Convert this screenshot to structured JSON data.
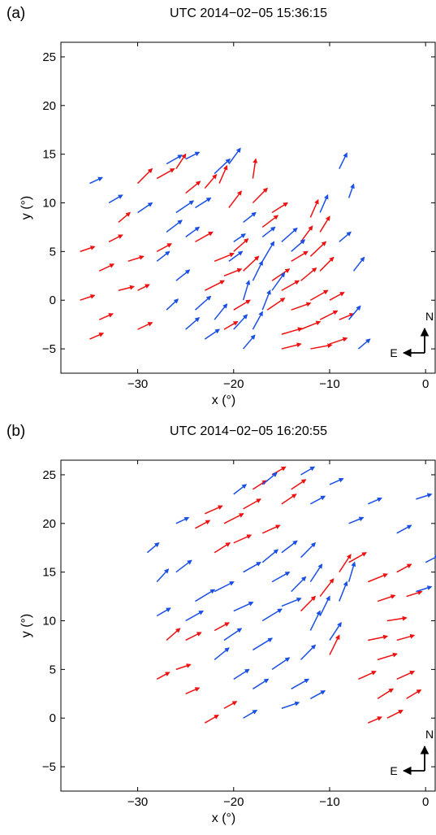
{
  "colors": {
    "red": "#ee1111",
    "blue": "#1a4fe6",
    "axis": "#000000"
  },
  "chart_data": [
    {
      "type": "scatter",
      "subtype": "vector-field",
      "panel_label": "(a)",
      "title": "UTC 2014−02−05 15:36:15",
      "xlabel": "x (°)",
      "ylabel": "y (°)",
      "xlim": [
        -38,
        1
      ],
      "ylim": [
        -7.5,
        26.5
      ],
      "xticks": [
        -30,
        -20,
        -10,
        0
      ],
      "xtick_labels": [
        "−30",
        "−20",
        "−10",
        "0"
      ],
      "yticks": [
        -5,
        0,
        5,
        10,
        15,
        20,
        25
      ],
      "ytick_labels": [
        "−5",
        "0",
        "5",
        "10",
        "15",
        "20",
        "25"
      ],
      "grid": false,
      "compass": {
        "north": "N",
        "east": "E"
      },
      "series": [
        {
          "color": "red",
          "values": [
            [
              -30,
              12,
              1.5,
              1.5
            ],
            [
              -28,
              12.5,
              1.8,
              1
            ],
            [
              -26,
              13.5,
              1,
              1.5
            ],
            [
              -25,
              11,
              1.5,
              1.2
            ],
            [
              -23,
              11.5,
              1.2,
              1.4
            ],
            [
              -21.5,
              12,
              0.8,
              1.8
            ],
            [
              -20.5,
              9.5,
              1.3,
              1.7
            ],
            [
              -18,
              12.5,
              0.3,
              2
            ],
            [
              -18,
              10,
              1.5,
              1.5
            ],
            [
              -17,
              7.5,
              1.6,
              1.2
            ],
            [
              -16,
              9,
              1.6,
              1
            ],
            [
              -36,
              5,
              1.5,
              0.5
            ],
            [
              -34,
              3,
              1.5,
              0.7
            ],
            [
              -33,
              6,
              1.4,
              0.7
            ],
            [
              -31,
              4,
              1.6,
              0.5
            ],
            [
              -32,
              8,
              1.2,
              1
            ],
            [
              -36,
              0,
              1.5,
              0.5
            ],
            [
              -34,
              -2,
              1.4,
              0.6
            ],
            [
              -32,
              1,
              1.6,
              0.4
            ],
            [
              -35,
              -4,
              1.4,
              0.6
            ],
            [
              -30,
              -3,
              1.5,
              0.7
            ],
            [
              -30,
              1,
              1.2,
              0.6
            ],
            [
              -28,
              5,
              1.5,
              0.8
            ],
            [
              -24,
              6,
              1.8,
              1
            ],
            [
              -22,
              4,
              2,
              0.8
            ],
            [
              -23,
              1,
              2,
              1
            ],
            [
              -21,
              2.5,
              1.8,
              0.7
            ],
            [
              -20,
              5,
              1.5,
              1.3
            ],
            [
              -20,
              -1,
              1.7,
              1
            ],
            [
              -19,
              3,
              1.6,
              1.5
            ],
            [
              -21,
              -3,
              1.4,
              0.8
            ],
            [
              -15,
              -3.5,
              2.1,
              0.6
            ],
            [
              -13,
              -3,
              2,
              0.8
            ],
            [
              -11,
              -2,
              1.8,
              0.9
            ],
            [
              -14,
              -1,
              2,
              0.7
            ],
            [
              -12,
              0,
              1.8,
              1
            ],
            [
              -10,
              0,
              1.5,
              0.8
            ],
            [
              -15,
              1,
              1.8,
              1
            ],
            [
              -13,
              2,
              1.6,
              1.3
            ],
            [
              -11,
              3,
              1.4,
              1.4
            ],
            [
              -12,
              4.5,
              1.6,
              1.5
            ],
            [
              -14,
              4,
              1.7,
              1
            ],
            [
              -15,
              -5,
              2,
              0.5
            ],
            [
              -12,
              -5,
              2.2,
              0.4
            ],
            [
              -10,
              -4.5,
              1.8,
              0.6
            ],
            [
              -9,
              -2,
              1.5,
              0.6
            ],
            [
              -13,
              6,
              1.2,
              1.6
            ],
            [
              -11,
              7,
              1,
              1.6
            ],
            [
              -12,
              8.5,
              0.8,
              1.8
            ],
            [
              -16,
              2,
              1.8,
              1.2
            ],
            [
              -16.5,
              -1,
              1.8,
              1.2
            ]
          ]
        },
        {
          "color": "blue",
          "values": [
            [
              -35,
              12,
              1.3,
              0.6
            ],
            [
              -33,
              10,
              1.4,
              0.8
            ],
            [
              -30,
              9,
              1.5,
              1
            ],
            [
              -27,
              14,
              1.6,
              0.9
            ],
            [
              -25,
              14.5,
              1.4,
              0.7
            ],
            [
              -22,
              13,
              1.6,
              1.5
            ],
            [
              -20.5,
              14,
              1.2,
              1.6
            ],
            [
              -26,
              9,
              1.8,
              1.2
            ],
            [
              -24,
              9.5,
              1.6,
              1
            ],
            [
              -27,
              7,
              1.6,
              1.2
            ],
            [
              -25,
              6.5,
              1.4,
              1
            ],
            [
              -28,
              4,
              1.3,
              1
            ],
            [
              -26,
              2,
              1.4,
              1.1
            ],
            [
              -27,
              -1,
              1.2,
              1.1
            ],
            [
              -25,
              -3,
              1.4,
              1.2
            ],
            [
              -23,
              -4,
              1.5,
              1
            ],
            [
              -24,
              -1,
              1.6,
              1.4
            ],
            [
              -22,
              -2,
              1.3,
              1.6
            ],
            [
              -19,
              0,
              0.6,
              2
            ],
            [
              -18,
              2,
              1,
              2
            ],
            [
              -17,
              -1,
              0.8,
              2
            ],
            [
              -18,
              -3,
              1,
              1.8
            ],
            [
              -16,
              1,
              1.3,
              1.8
            ],
            [
              -17,
              4,
              1.2,
              2
            ],
            [
              -15,
              6,
              1.6,
              1.4
            ],
            [
              -17,
              6.5,
              1.3,
              1
            ],
            [
              -14,
              5,
              1.4,
              1.2
            ],
            [
              -19,
              -5,
              1.2,
              1.4
            ],
            [
              -20,
              -3,
              1.4,
              1.5
            ],
            [
              -20,
              6,
              1.2,
              0.8
            ],
            [
              -19,
              8,
              1.3,
              1
            ],
            [
              -20.5,
              4,
              1.4,
              1
            ],
            [
              -11,
              9,
              0.8,
              1.8
            ],
            [
              -8,
              10.5,
              0.5,
              1.4
            ],
            [
              -9,
              13.5,
              0.8,
              1.6
            ],
            [
              -8,
              -2,
              1.2,
              1.4
            ],
            [
              -7.5,
              3,
              1.1,
              1.4
            ],
            [
              -7,
              -5,
              1.2,
              1
            ],
            [
              -9,
              6,
              1.2,
              1
            ]
          ]
        }
      ]
    },
    {
      "type": "scatter",
      "subtype": "vector-field",
      "panel_label": "(b)",
      "title": "UTC 2014−02−05 16:20:55",
      "xlabel": "x (°)",
      "ylabel": "y (°)",
      "xlim": [
        -38,
        1
      ],
      "ylim": [
        -7.5,
        26.5
      ],
      "xticks": [
        -30,
        -20,
        -10,
        0
      ],
      "xtick_labels": [
        "−30",
        "−20",
        "−10",
        "0"
      ],
      "yticks": [
        -5,
        0,
        5,
        10,
        15,
        20,
        25
      ],
      "ytick_labels": [
        "−5",
        "0",
        "5",
        "10",
        "15",
        "20",
        "25"
      ],
      "grid": false,
      "compass": {
        "north": "N",
        "east": "E"
      },
      "series": [
        {
          "color": "red",
          "values": [
            [
              -23,
              21,
              1.8,
              0.8
            ],
            [
              -21,
              20,
              2,
              1
            ],
            [
              -19,
              21.5,
              1.8,
              1
            ],
            [
              -17,
              19,
              1.8,
              0.8
            ],
            [
              -15,
              22,
              1.5,
              1
            ],
            [
              -20,
              18,
              1.8,
              0.8
            ],
            [
              -22,
              17,
              1.6,
              1
            ],
            [
              -18,
              23.5,
              1.4,
              0.9
            ],
            [
              -14,
              23.5,
              1.5,
              1
            ],
            [
              -16,
              25,
              1.4,
              0.8
            ],
            [
              -24,
              19.5,
              1.5,
              0.8
            ],
            [
              -8,
              16,
              1.8,
              1
            ],
            [
              -6,
              14,
              2,
              0.8
            ],
            [
              -5,
              12,
              1.8,
              0.6
            ],
            [
              -4,
              10,
              2,
              0.3
            ],
            [
              -6,
              8,
              2,
              0.4
            ],
            [
              -3,
              8,
              1.8,
              0.5
            ],
            [
              -5,
              6,
              2,
              0.6
            ],
            [
              -3,
              4,
              1.8,
              0.8
            ],
            [
              -5,
              2,
              1.6,
              1
            ],
            [
              -7,
              4,
              1.8,
              0.8
            ],
            [
              -2,
              2,
              1.5,
              0.9
            ],
            [
              -4,
              0,
              1.6,
              0.8
            ],
            [
              -6,
              -0.5,
              1.4,
              0.6
            ],
            [
              -13,
              11,
              1.5,
              1.5
            ],
            [
              -11,
              12.5,
              1.4,
              1.8
            ],
            [
              -10,
              6.5,
              1,
              2
            ],
            [
              -9,
              15,
              1.2,
              1.8
            ],
            [
              -3,
              15,
              1.5,
              0.8
            ],
            [
              -2,
              12.5,
              1.6,
              0.5
            ],
            [
              -27,
              8,
              1.4,
              1.2
            ],
            [
              -26,
              5,
              1.5,
              0.5
            ],
            [
              -25,
              8,
              1.6,
              0.8
            ],
            [
              -28,
              4,
              1.3,
              0.7
            ],
            [
              -22,
              9,
              1.5,
              0.8
            ],
            [
              -23,
              -0.5,
              1.4,
              0.8
            ],
            [
              -25,
              2.5,
              1.4,
              0.6
            ],
            [
              -21,
              1,
              1.3,
              0.7
            ]
          ]
        },
        {
          "color": "blue",
          "values": [
            [
              -29,
              17,
              1.2,
              1
            ],
            [
              -28,
              14,
              1.2,
              1.3
            ],
            [
              -26,
              15,
              1.6,
              1.2
            ],
            [
              -24,
              12,
              2,
              1.2
            ],
            [
              -22,
              13,
              2,
              1
            ],
            [
              -25,
              10,
              1.8,
              1
            ],
            [
              -20,
              11,
              2,
              0.9
            ],
            [
              -21,
              8,
              1.8,
              1.2
            ],
            [
              -18,
              7,
              2,
              1.2
            ],
            [
              -17,
              10,
              2,
              1.2
            ],
            [
              -15,
              11.5,
              2,
              0.8
            ],
            [
              -16,
              14,
              1.8,
              1
            ],
            [
              -14,
              13,
              1.5,
              1.5
            ],
            [
              -12,
              14,
              1.2,
              1.8
            ],
            [
              -13,
              16.5,
              1.5,
              1.5
            ],
            [
              -15,
              17,
              1.6,
              1.2
            ],
            [
              -17,
              16,
              1.6,
              1.3
            ],
            [
              -19,
              15,
              1.8,
              1
            ],
            [
              -12,
              9,
              1,
              2
            ],
            [
              -11,
              10.5,
              1,
              2
            ],
            [
              -9,
              12,
              0.8,
              2
            ],
            [
              -10,
              8,
              1.2,
              1.8
            ],
            [
              -8,
              14,
              0.6,
              2
            ],
            [
              -13,
              6,
              1.5,
              1.5
            ],
            [
              -14,
              3,
              1.8,
              1
            ],
            [
              -16,
              5,
              1.8,
              1.2
            ],
            [
              -18,
              3,
              1.6,
              1
            ],
            [
              -15,
              1,
              1.8,
              0.6
            ],
            [
              -12,
              2,
              1.5,
              0.8
            ],
            [
              -19,
              0,
              1.4,
              0.8
            ],
            [
              -20,
              4,
              1.6,
              1
            ],
            [
              -22,
              6,
              1.5,
              1.2
            ],
            [
              -20,
              23,
              1.3,
              1
            ],
            [
              -17,
              24,
              1.5,
              1.2
            ],
            [
              -13,
              25,
              1.4,
              0.8
            ],
            [
              -12,
              22,
              1.5,
              0.8
            ],
            [
              -10,
              24,
              1.4,
              0.6
            ],
            [
              -8,
              20,
              1.5,
              0.6
            ],
            [
              -6,
              22,
              1.4,
              0.6
            ],
            [
              -3,
              19,
              1.5,
              0.8
            ],
            [
              -1,
              22.5,
              1.6,
              0.5
            ],
            [
              0,
              16,
              1.4,
              0.7
            ],
            [
              -1,
              13,
              1.6,
              0.5
            ],
            [
              -26,
              20,
              1.3,
              0.6
            ],
            [
              -28,
              10.5,
              1.4,
              0.8
            ]
          ]
        }
      ]
    }
  ]
}
